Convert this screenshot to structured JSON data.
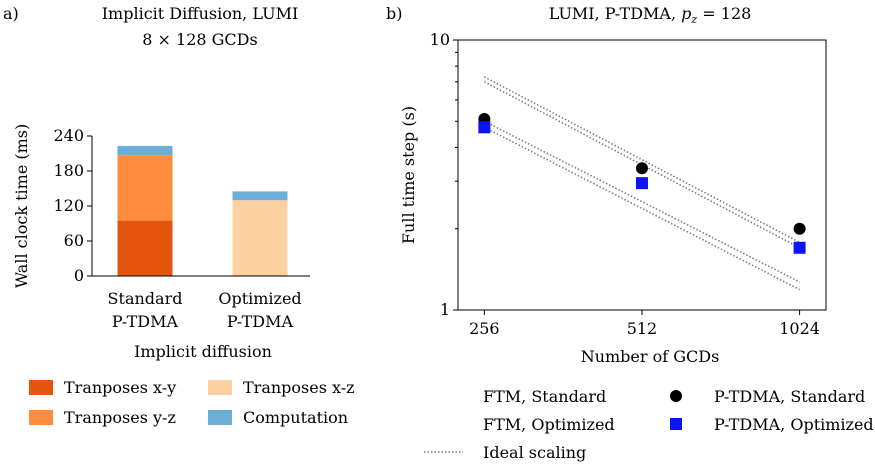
{
  "chart_data": [
    {
      "panel_label": "a)",
      "type": "bar",
      "stacked": true,
      "title_lines": [
        "Implicit Diffusion, LUMI",
        "8 × 128 GCDs"
      ],
      "xlabel": "Implicit diffusion",
      "ylabel": "Wall clock time (ms)",
      "ylim": [
        0,
        240
      ],
      "yticks": [
        0,
        60,
        120,
        180,
        240
      ],
      "categories": [
        {
          "lines": [
            "Standard",
            "P-TDMA"
          ]
        },
        {
          "lines": [
            "Optimized",
            "P-TDMA"
          ]
        }
      ],
      "series": [
        {
          "name": "Tranposes x-y",
          "color": "#e6550d",
          "values": [
            95,
            0
          ]
        },
        {
          "name": "Tranposes y-z",
          "color": "#fd8d3c",
          "values": [
            112,
            0
          ]
        },
        {
          "name": "Tranposes x-z",
          "color": "#fdd0a2",
          "values": [
            0,
            130
          ]
        },
        {
          "name": "Computation",
          "color": "#6baed6",
          "values": [
            16,
            15
          ]
        }
      ],
      "legend": [
        {
          "label": "Tranposes x-y",
          "color": "#e6550d"
        },
        {
          "label": "Tranposes x-z",
          "color": "#fdd0a2"
        },
        {
          "label": "Tranposes y-z",
          "color": "#fd8d3c"
        },
        {
          "label": "Computation",
          "color": "#6baed6"
        }
      ]
    },
    {
      "panel_label": "b)",
      "type": "scatter",
      "title": {
        "pre": "LUMI, P-TDMA, ",
        "var": "p",
        "sub": "z",
        "post": " = 128"
      },
      "xlabel": "Number of GCDs",
      "ylabel": "Full time step (s)",
      "xscale": "log",
      "yscale": "log",
      "xlim": [
        228,
        1150
      ],
      "ylim": [
        1,
        10
      ],
      "xticks": [
        256,
        512,
        1024
      ],
      "yticks": [
        {
          "value": 1,
          "label": "1"
        },
        {
          "value": 10,
          "label": "10"
        }
      ],
      "series": [
        {
          "name": "P-TDMA, Standard",
          "marker": "circle",
          "color": "#000000",
          "x": [
            256,
            512,
            1024
          ],
          "y": [
            5.1,
            3.35,
            2.0
          ]
        },
        {
          "name": "P-TDMA, Optimized",
          "marker": "square",
          "color": "#0a14f5",
          "x": [
            256,
            512,
            1024
          ],
          "y": [
            4.75,
            2.95,
            1.7
          ]
        }
      ],
      "ideal_lines": [
        {
          "x": [
            256,
            1024
          ],
          "y": [
            7.3,
            1.78
          ]
        },
        {
          "x": [
            256,
            1024
          ],
          "y": [
            7.0,
            1.7
          ]
        },
        {
          "x": [
            256,
            1024
          ],
          "y": [
            5.0,
            1.27
          ]
        },
        {
          "x": [
            256,
            1024
          ],
          "y": [
            4.75,
            1.19
          ]
        }
      ],
      "legend": [
        {
          "label": "FTM, Standard",
          "kind": "none"
        },
        {
          "label": "P-TDMA, Standard",
          "kind": "circle",
          "color": "#000000"
        },
        {
          "label": "FTM, Optimized",
          "kind": "none"
        },
        {
          "label": "P-TDMA, Optimized",
          "kind": "square",
          "color": "#0a14f5"
        },
        {
          "label": "Ideal scaling",
          "kind": "dotted",
          "color": "#777777"
        }
      ]
    }
  ]
}
